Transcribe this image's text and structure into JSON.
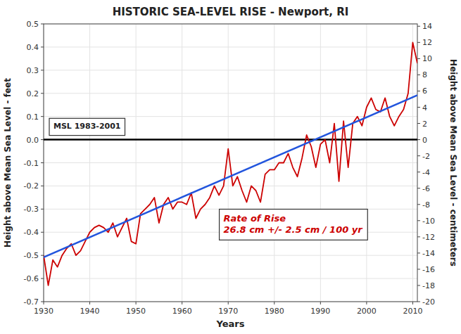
{
  "chart_data": {
    "type": "line",
    "title": "HISTORIC SEA-LEVEL RISE - Newport, RI",
    "xlabel": "Years",
    "ylabel": "Height above Mean Sea Level - feet",
    "y2label": "Height above Mean Sea Level - centimeters",
    "annotations": [
      {
        "lines": [
          "MSL 1983-2001"
        ]
      },
      {
        "lines": [
          "Rate of Rise",
          "26.8 cm +/- 2.5 cm / 100 yr"
        ]
      }
    ],
    "xlim": [
      1930,
      2011
    ],
    "xticks": [
      1930,
      1940,
      1950,
      1960,
      1970,
      1980,
      1990,
      2000,
      2010
    ],
    "ylim": [
      -0.7,
      0.5
    ],
    "yticks": [
      -0.7,
      -0.6,
      -0.5,
      -0.4,
      -0.3,
      -0.2,
      -0.1,
      {
        "value": 0.0,
        "label": "0.0"
      },
      0.1,
      0.2,
      0.3,
      0.4,
      0.5
    ],
    "y2lim": [
      -20,
      14.286
    ],
    "y2ticks": [
      -20,
      -18,
      -16,
      -14,
      -12,
      -10,
      -8,
      -6,
      -4,
      -2,
      0,
      2,
      4,
      6,
      8,
      10,
      12,
      14
    ],
    "grid": true,
    "series": [
      {
        "color": "#000000",
        "x": [
          1930,
          2011
        ],
        "values": [
          0,
          0
        ]
      },
      {
        "color": "#cc0000",
        "x": [
          1930,
          1931,
          1932,
          1933,
          1934,
          1935,
          1936,
          1937,
          1938,
          1939,
          1940,
          1941,
          1942,
          1943,
          1944,
          1945,
          1946,
          1947,
          1948,
          1949,
          1950,
          1951,
          1952,
          1953,
          1954,
          1955,
          1956,
          1957,
          1958,
          1959,
          1960,
          1961,
          1962,
          1963,
          1964,
          1965,
          1966,
          1967,
          1968,
          1969,
          1970,
          1971,
          1972,
          1973,
          1974,
          1975,
          1976,
          1977,
          1978,
          1979,
          1980,
          1981,
          1982,
          1983,
          1984,
          1985,
          1986,
          1987,
          1988,
          1989,
          1990,
          1991,
          1992,
          1993,
          1994,
          1995,
          1996,
          1997,
          1998,
          1999,
          2000,
          2001,
          2002,
          2003,
          2004,
          2005,
          2006,
          2007,
          2008,
          2009,
          2010,
          2011
        ],
        "values": [
          -0.5,
          -0.63,
          -0.52,
          -0.55,
          -0.5,
          -0.47,
          -0.45,
          -0.5,
          -0.48,
          -0.44,
          -0.4,
          -0.38,
          -0.37,
          -0.38,
          -0.4,
          -0.36,
          -0.42,
          -0.38,
          -0.34,
          -0.44,
          -0.45,
          -0.32,
          -0.3,
          -0.28,
          -0.25,
          -0.36,
          -0.28,
          -0.25,
          -0.3,
          -0.27,
          -0.27,
          -0.28,
          -0.23,
          -0.34,
          -0.3,
          -0.28,
          -0.25,
          -0.2,
          -0.24,
          -0.2,
          -0.04,
          -0.2,
          -0.16,
          -0.22,
          -0.27,
          -0.2,
          -0.22,
          -0.27,
          -0.15,
          -0.13,
          -0.13,
          -0.1,
          -0.1,
          -0.06,
          -0.12,
          -0.16,
          -0.08,
          0.02,
          -0.03,
          -0.12,
          -0.02,
          0.0,
          -0.1,
          0.07,
          -0.18,
          0.08,
          -0.12,
          0.07,
          0.1,
          0.06,
          0.14,
          0.18,
          0.13,
          0.12,
          0.18,
          0.1,
          0.06,
          0.1,
          0.13,
          0.2,
          0.42,
          0.33
        ]
      },
      {
        "color": "#2255dd",
        "x": [
          1930,
          2011
        ],
        "values": [
          -0.508,
          0.192
        ]
      }
    ]
  }
}
